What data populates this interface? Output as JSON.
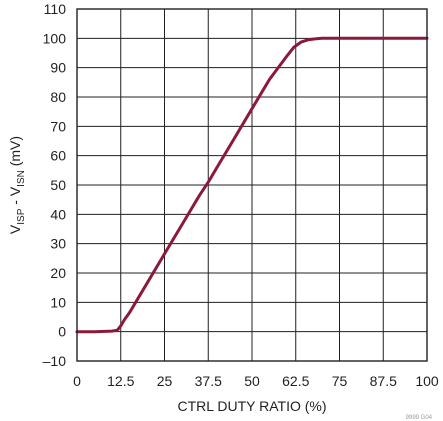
{
  "chart_data": {
    "type": "line",
    "title": "",
    "xlabel": "CTRL DUTY RATIO (%)",
    "ylabel": {
      "parts": [
        "V",
        "ISP",
        " - V",
        "ISN",
        " (mV)"
      ]
    },
    "x_ticks": [
      "0",
      "12.5",
      "25",
      "37.5",
      "50",
      "62.5",
      "75",
      "87.5",
      "100"
    ],
    "y_ticks": [
      "–10",
      "0",
      "10",
      "20",
      "30",
      "40",
      "50",
      "60",
      "70",
      "80",
      "90",
      "100",
      "110"
    ],
    "xlim": [
      0,
      100
    ],
    "ylim": [
      -10,
      110
    ],
    "grid": true,
    "legend": "none",
    "figure_note": "9999 G04",
    "series": [
      {
        "color": "#8b1a3a",
        "x": [
          0,
          5,
          10,
          11.5,
          12.5,
          13.5,
          15,
          20,
          25,
          30,
          35,
          37.5,
          40,
          45,
          50,
          55,
          60,
          62,
          64,
          66,
          68,
          70,
          72,
          75,
          80,
          90,
          100
        ],
        "y": [
          0,
          0,
          0.2,
          0.5,
          2,
          4,
          6.5,
          16.5,
          26.5,
          36.5,
          46.5,
          51,
          56,
          66,
          76,
          86,
          94,
          97,
          98.7,
          99.5,
          99.8,
          100,
          100,
          100,
          100,
          100,
          100
        ]
      }
    ]
  }
}
